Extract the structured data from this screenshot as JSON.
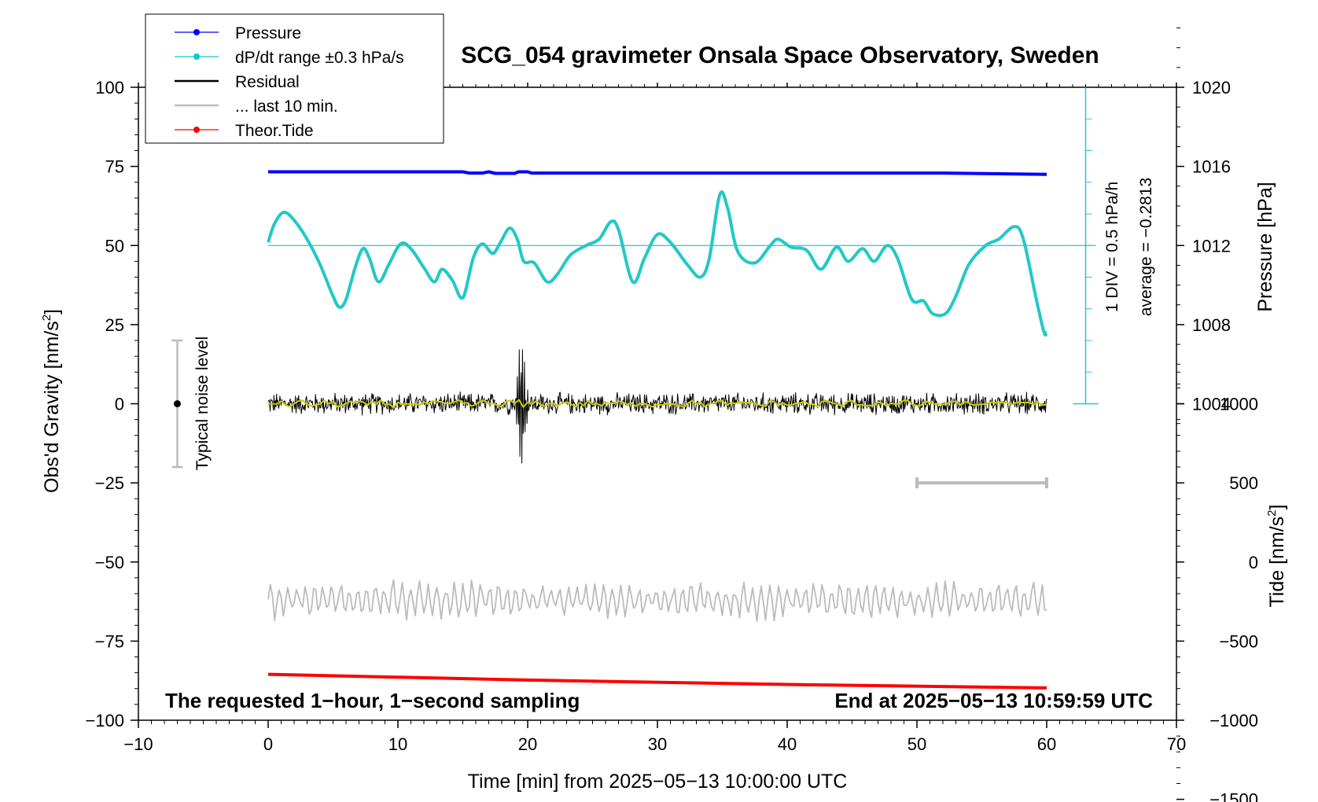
{
  "chart_data": {
    "type": "line",
    "title": "SCG_054 gravimeter Onsala Space Observatory, Sweden",
    "xlabel": "Time [min] from 2025−05−13 10:00:00 UTC",
    "ylabel": "Obs'd Gravity [nm/s²]",
    "ylabel_main": "Obs'd Gravity [nm/s",
    "ylabel_sup": "2",
    "ylabel_end": "]",
    "xlim": [
      -10,
      70
    ],
    "ylim": [
      -100,
      100
    ],
    "xticks": [
      -10,
      0,
      10,
      20,
      30,
      40,
      50,
      60,
      70
    ],
    "xtick_labels": [
      "−10",
      "0",
      "10",
      "20",
      "30",
      "40",
      "50",
      "60",
      "70"
    ],
    "yticks": [
      100,
      75,
      50,
      25,
      0,
      -25,
      -50,
      -75,
      -100
    ],
    "ytick_labels": [
      "100",
      "75",
      "50",
      "25",
      "0",
      "−25",
      "−50",
      "−75",
      "−100"
    ],
    "pressure_axis": {
      "label": "Pressure [hPa]",
      "ticks": [
        1020,
        1016,
        1012,
        1008,
        1004
      ],
      "tick_labels": [
        "1020",
        "1016",
        "1012",
        "1008",
        "1004"
      ]
    },
    "tide_axis": {
      "label_main": "Tide [nm/s",
      "label_sup": "2",
      "label_end": "]",
      "ticks": [
        1000,
        500,
        0,
        -500,
        -1000,
        -1500
      ],
      "tick_labels": [
        "1000",
        "500",
        "0",
        "−500",
        "−1000",
        "−1500"
      ]
    },
    "legend": [
      {
        "label": "Pressure",
        "color": "#0000ff",
        "marker": true
      },
      {
        "label": "dP/dt range ±0.3 hPa/s",
        "color": "#00cccc",
        "marker": true
      },
      {
        "label": "Residual",
        "color": "#000000",
        "marker": false
      },
      {
        "label": "... last 10 min.",
        "color": "#bbbbbb",
        "marker": false
      },
      {
        "label": "Theor.Tide",
        "color": "#ff0000",
        "marker": true
      }
    ],
    "legend_position": "top-left",
    "annotations": {
      "bottom_left": "The requested 1−hour, 1−second sampling",
      "bottom_right": "End at 2025−05−13 10:59:59 UTC",
      "noise_label": "Typical noise level",
      "div_label": "1 DIV = 0.5 hPa/h",
      "average_label": "average = −0.2813"
    },
    "noise_bar": {
      "x": -7,
      "y": 0,
      "low": -20,
      "high": 20
    },
    "last10_bar": {
      "x_start": 50,
      "x_end": 60,
      "y": -25
    },
    "series": [
      {
        "name": "Pressure",
        "color": "#0000ff",
        "points": [
          [
            0,
            73.3
          ],
          [
            15,
            73.3
          ],
          [
            15.5,
            72.9
          ],
          [
            16.5,
            72.9
          ],
          [
            17,
            73.3
          ],
          [
            17.5,
            72.8
          ],
          [
            19,
            72.8
          ],
          [
            19.3,
            73.3
          ],
          [
            20,
            73.3
          ],
          [
            20.3,
            72.9
          ],
          [
            52,
            72.9
          ],
          [
            60,
            72.5
          ]
        ]
      },
      {
        "name": "dP/dt",
        "color": "#22c8c8",
        "reference": 50,
        "points": [
          [
            0,
            51
          ],
          [
            0.5,
            57
          ],
          [
            1.2,
            60.5
          ],
          [
            2,
            58
          ],
          [
            3,
            52
          ],
          [
            4,
            44
          ],
          [
            5,
            34
          ],
          [
            5.5,
            30.5
          ],
          [
            6,
            33
          ],
          [
            6.7,
            43
          ],
          [
            7.3,
            49
          ],
          [
            7.8,
            46
          ],
          [
            8.5,
            38.5
          ],
          [
            9.3,
            44
          ],
          [
            10.2,
            50.5
          ],
          [
            11,
            49
          ],
          [
            12,
            43
          ],
          [
            12.8,
            38.5
          ],
          [
            13.4,
            42.5
          ],
          [
            14.2,
            39
          ],
          [
            15,
            33.5
          ],
          [
            15.8,
            46
          ],
          [
            16.5,
            50.5
          ],
          [
            17.3,
            47.5
          ],
          [
            17.9,
            51
          ],
          [
            18.6,
            55.5
          ],
          [
            19.2,
            52
          ],
          [
            19.7,
            45
          ],
          [
            20.5,
            44.5
          ],
          [
            21.5,
            38.5
          ],
          [
            22.3,
            41
          ],
          [
            23.3,
            47
          ],
          [
            24.5,
            50
          ],
          [
            25.5,
            52
          ],
          [
            26.4,
            57.5
          ],
          [
            27,
            55
          ],
          [
            28.1,
            38.5
          ],
          [
            29,
            46
          ],
          [
            30,
            53.5
          ],
          [
            31,
            51
          ],
          [
            32.3,
            44
          ],
          [
            33.3,
            40
          ],
          [
            34,
            46
          ],
          [
            34.8,
            66
          ],
          [
            35.4,
            62
          ],
          [
            36.2,
            48
          ],
          [
            37.5,
            44.5
          ],
          [
            38.7,
            50
          ],
          [
            39.3,
            52
          ],
          [
            40.3,
            49.5
          ],
          [
            41.5,
            48.5
          ],
          [
            42.6,
            42.5
          ],
          [
            43.8,
            49.5
          ],
          [
            44.7,
            45
          ],
          [
            45.8,
            49
          ],
          [
            46.7,
            45
          ],
          [
            47.7,
            50
          ],
          [
            48.5,
            46
          ],
          [
            49.6,
            33
          ],
          [
            50.5,
            32.5
          ],
          [
            51.2,
            28.5
          ],
          [
            52.2,
            28.5
          ],
          [
            53,
            34
          ],
          [
            54,
            44
          ],
          [
            55.3,
            50
          ],
          [
            56.3,
            52
          ],
          [
            57.5,
            56
          ],
          [
            58.2,
            52
          ],
          [
            59.2,
            33
          ],
          [
            59.8,
            22.5
          ],
          [
            60,
            22.5
          ]
        ]
      },
      {
        "name": "Residual",
        "color": "#000000",
        "amplitude": 2.2,
        "event_center": 19.5,
        "event_peak": 21,
        "event_trough": -22
      },
      {
        "name": "Residual smoothed",
        "color": "#cccc00",
        "amplitude": 0.8
      },
      {
        "name": "last 10 min.",
        "color": "#bbbbbb",
        "baseline": -62,
        "amplitude": 4.5
      },
      {
        "name": "Theor.Tide",
        "color": "#ff0000",
        "points": [
          [
            0,
            -85.5
          ],
          [
            20,
            -87.3
          ],
          [
            40,
            -88.7
          ],
          [
            60,
            -89.8
          ]
        ]
      }
    ]
  }
}
